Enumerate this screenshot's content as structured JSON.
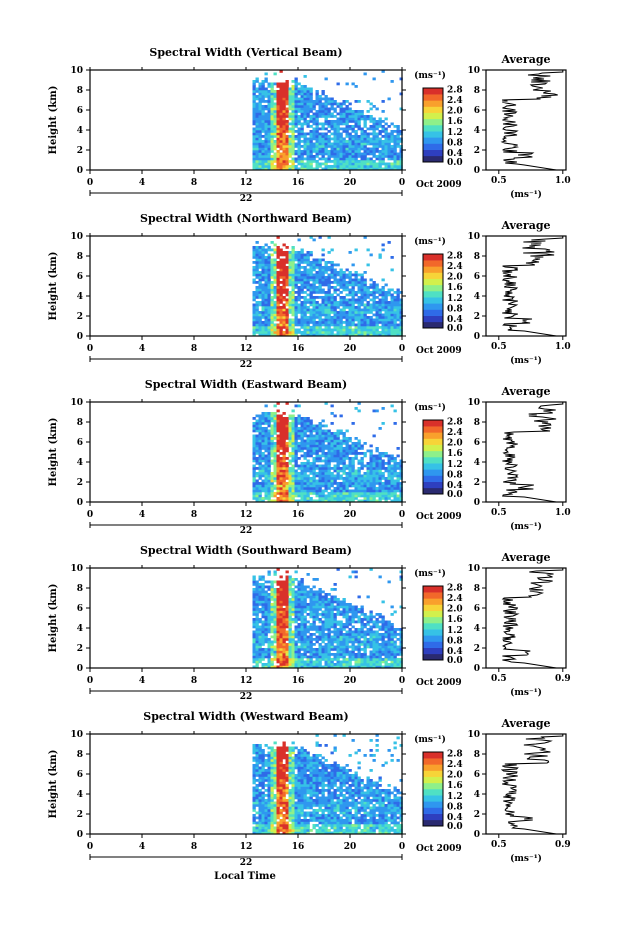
{
  "figure": {
    "xlabel": "Local Time",
    "date_label": "Oct 2009",
    "day_label": "22"
  },
  "chart_data": [
    {
      "type": "heatmap",
      "title": "Spectral Width (Vertical Beam)",
      "xlabel": "",
      "ylabel": "Height (km)",
      "xlim": [
        0,
        24
      ],
      "ylim": [
        0,
        10
      ],
      "x_ticks": [
        "0",
        "4",
        "8",
        "12",
        "16",
        "20",
        "0"
      ],
      "y_ticks": [
        "0",
        "2",
        "4",
        "6",
        "8",
        "10"
      ],
      "data_start_hour": 12.5,
      "colorbar": {
        "unit": "(ms⁻¹)",
        "ticks": [
          "0.0",
          "0.4",
          "0.8",
          "1.2",
          "1.6",
          "2.0",
          "2.4",
          "2.8"
        ]
      },
      "avg_panel": {
        "title": "Average",
        "xlabel": "(ms⁻¹)",
        "x_ticks": [
          "0.5",
          "1.0"
        ]
      }
    },
    {
      "type": "heatmap",
      "title": "Spectral Width (Northward Beam)",
      "xlabel": "",
      "ylabel": "Height (km)",
      "xlim": [
        0,
        24
      ],
      "ylim": [
        0,
        10
      ],
      "x_ticks": [
        "0",
        "4",
        "8",
        "12",
        "16",
        "20",
        "0"
      ],
      "y_ticks": [
        "0",
        "2",
        "4",
        "6",
        "8",
        "10"
      ],
      "data_start_hour": 12.5,
      "colorbar": {
        "unit": "(ms⁻¹)",
        "ticks": [
          "0.0",
          "0.4",
          "0.8",
          "1.2",
          "1.6",
          "2.0",
          "2.4",
          "2.8"
        ]
      },
      "avg_panel": {
        "title": "Average",
        "xlabel": "(ms⁻¹)",
        "x_ticks": [
          "0.5",
          "1.0"
        ]
      }
    },
    {
      "type": "heatmap",
      "title": "Spectral Width (Eastward Beam)",
      "xlabel": "",
      "ylabel": "Height (km)",
      "xlim": [
        0,
        24
      ],
      "ylim": [
        0,
        10
      ],
      "x_ticks": [
        "0",
        "4",
        "8",
        "12",
        "16",
        "20",
        "0"
      ],
      "y_ticks": [
        "0",
        "2",
        "4",
        "6",
        "8",
        "10"
      ],
      "data_start_hour": 12.5,
      "colorbar": {
        "unit": "(ms⁻¹)",
        "ticks": [
          "0.0",
          "0.4",
          "0.8",
          "1.2",
          "1.6",
          "2.0",
          "2.4",
          "2.8"
        ]
      },
      "avg_panel": {
        "title": "Average",
        "xlabel": "(ms⁻¹)",
        "x_ticks": [
          "0.5",
          "1.0"
        ]
      }
    },
    {
      "type": "heatmap",
      "title": "Spectral Width (Southward Beam)",
      "xlabel": "",
      "ylabel": "Height (km)",
      "xlim": [
        0,
        24
      ],
      "ylim": [
        0,
        10
      ],
      "x_ticks": [
        "0",
        "4",
        "8",
        "12",
        "16",
        "20",
        "0"
      ],
      "y_ticks": [
        "0",
        "2",
        "4",
        "6",
        "8",
        "10"
      ],
      "data_start_hour": 12.5,
      "colorbar": {
        "unit": "(ms⁻¹)",
        "ticks": [
          "0.0",
          "0.4",
          "0.8",
          "1.2",
          "1.6",
          "2.0",
          "2.4",
          "2.8"
        ]
      },
      "avg_panel": {
        "title": "Average",
        "xlabel": "(ms⁻¹)",
        "x_ticks": [
          "0.5",
          "0.9"
        ]
      }
    },
    {
      "type": "heatmap",
      "title": "Spectral Width (Westward Beam)",
      "xlabel": "",
      "ylabel": "Height (km)",
      "xlim": [
        0,
        24
      ],
      "ylim": [
        0,
        10
      ],
      "x_ticks": [
        "0",
        "4",
        "8",
        "12",
        "16",
        "20",
        "0"
      ],
      "y_ticks": [
        "0",
        "2",
        "4",
        "6",
        "8",
        "10"
      ],
      "data_start_hour": 12.5,
      "colorbar": {
        "unit": "(ms⁻¹)",
        "ticks": [
          "0.0",
          "0.4",
          "0.8",
          "1.2",
          "1.6",
          "2.0",
          "2.4",
          "2.8"
        ]
      },
      "avg_panel": {
        "title": "Average",
        "xlabel": "(ms⁻¹)",
        "x_ticks": [
          "0.5",
          "0.9"
        ]
      }
    }
  ]
}
